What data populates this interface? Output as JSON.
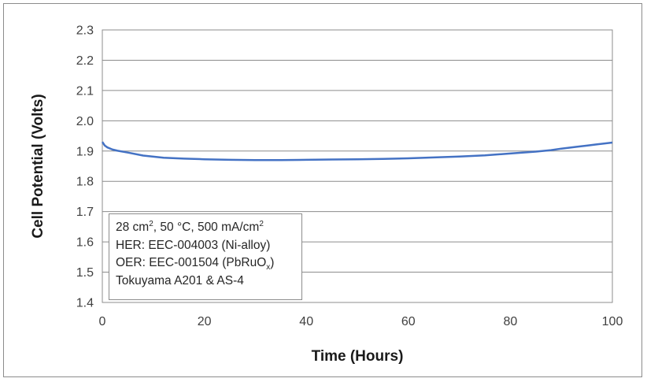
{
  "chart_data": {
    "type": "line",
    "xlabel": "Time (Hours)",
    "ylabel": "Cell Potential (Volts)",
    "xlim": [
      0,
      100
    ],
    "ylim": [
      1.4,
      2.3
    ],
    "xticks": [
      "0",
      "20",
      "40",
      "60",
      "80",
      "100"
    ],
    "yticks": [
      "1.4",
      "1.5",
      "1.6",
      "1.7",
      "1.8",
      "1.9",
      "2.0",
      "2.1",
      "2.2",
      "2.3"
    ],
    "grid": "horizontal",
    "series": [
      {
        "color": "#4472c4",
        "x": [
          0,
          0.5,
          1,
          2,
          3,
          5,
          8,
          12,
          16,
          20,
          25,
          30,
          35,
          40,
          45,
          50,
          55,
          60,
          65,
          70,
          75,
          80,
          85,
          88,
          90,
          93,
          95,
          97,
          100
        ],
        "y": [
          1.93,
          1.918,
          1.912,
          1.905,
          1.901,
          1.895,
          1.885,
          1.878,
          1.875,
          1.873,
          1.871,
          1.87,
          1.87,
          1.871,
          1.872,
          1.873,
          1.874,
          1.876,
          1.879,
          1.882,
          1.886,
          1.892,
          1.898,
          1.903,
          1.908,
          1.914,
          1.918,
          1.922,
          1.928
        ]
      }
    ],
    "annotation": {
      "line1_pre": "28 cm",
      "line1_sup1": "2",
      "line1_mid": ", 50 °C, 500 mA/cm",
      "line1_sup2": "2",
      "line2": "HER: EEC-004003 (Ni-alloy)",
      "line3_pre": "OER: EEC-001504 (PbRuO",
      "line3_sub": "x",
      "line3_post": ")",
      "line4": "Tokuyama A201 & AS-4"
    }
  }
}
